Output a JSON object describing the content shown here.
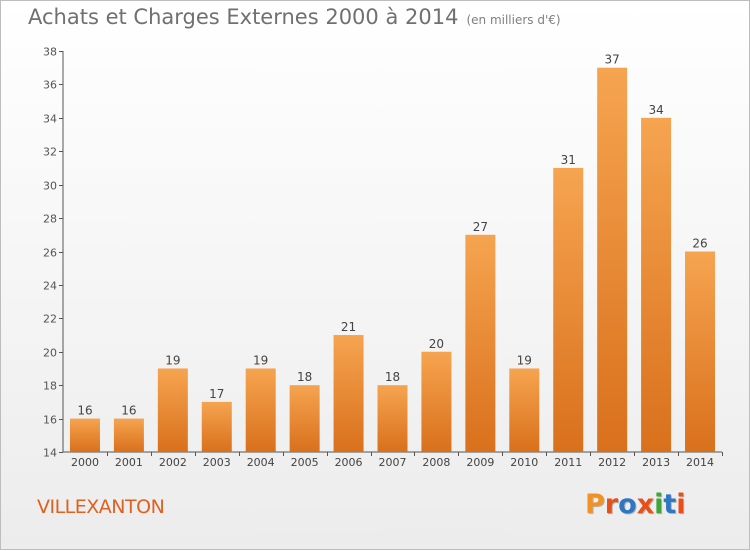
{
  "header": {
    "title": "Achats et Charges Externes 2000 à 2014",
    "unit": "(en milliers d'€)"
  },
  "footer": {
    "commune": "VILLEXANTON",
    "logo_text": "Proxiti"
  },
  "colors": {
    "bar_light": "#f6a450",
    "bar_dark": "#d9701c",
    "commune": "#e06020",
    "logo_letters": [
      "#f39224",
      "#e8501a",
      "#2f77c0",
      "#e8501a",
      "#3fa43a",
      "#2f77c0",
      "#e8501a"
    ]
  },
  "chart_data": {
    "type": "bar",
    "title": "Achats et Charges Externes 2000 à 2014",
    "subtitle": "(en milliers d'€)",
    "categories": [
      "2000",
      "2001",
      "2002",
      "2003",
      "2004",
      "2005",
      "2006",
      "2007",
      "2008",
      "2009",
      "2010",
      "2011",
      "2012",
      "2013",
      "2014"
    ],
    "values": [
      16,
      16,
      19,
      17,
      19,
      18,
      21,
      18,
      20,
      27,
      19,
      31,
      37,
      34,
      26
    ],
    "ylim": [
      14,
      38
    ],
    "yticks": [
      14,
      16,
      18,
      20,
      22,
      24,
      26,
      28,
      30,
      32,
      34,
      36,
      38
    ],
    "grid": false,
    "legend": "none"
  }
}
